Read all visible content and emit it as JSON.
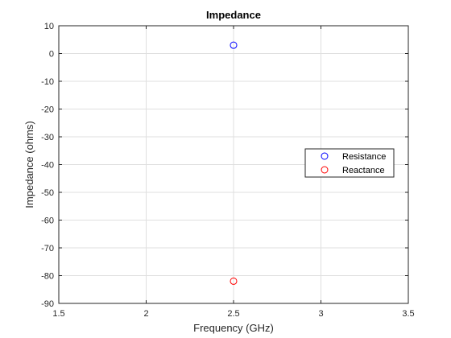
{
  "chart_data": {
    "type": "scatter",
    "title": "Impedance",
    "xlabel": "Frequency (GHz)",
    "ylabel": "Impedance (ohms)",
    "xlim": [
      1.5,
      3.5
    ],
    "ylim": [
      -90,
      10
    ],
    "xticks": [
      "1.5",
      "2",
      "2.5",
      "3",
      "3.5"
    ],
    "yticks": [
      "10",
      "0",
      "-10",
      "-20",
      "-30",
      "-40",
      "-50",
      "-60",
      "-70",
      "-80",
      "-90"
    ],
    "grid": true,
    "legend_position": "right",
    "series": [
      {
        "name": "Resistance",
        "color": "#0000ff",
        "marker": "circle",
        "x": [
          2.5
        ],
        "y": [
          3
        ]
      },
      {
        "name": "Reactance",
        "color": "#ff0000",
        "marker": "circle",
        "x": [
          2.5
        ],
        "y": [
          -82
        ]
      }
    ]
  }
}
